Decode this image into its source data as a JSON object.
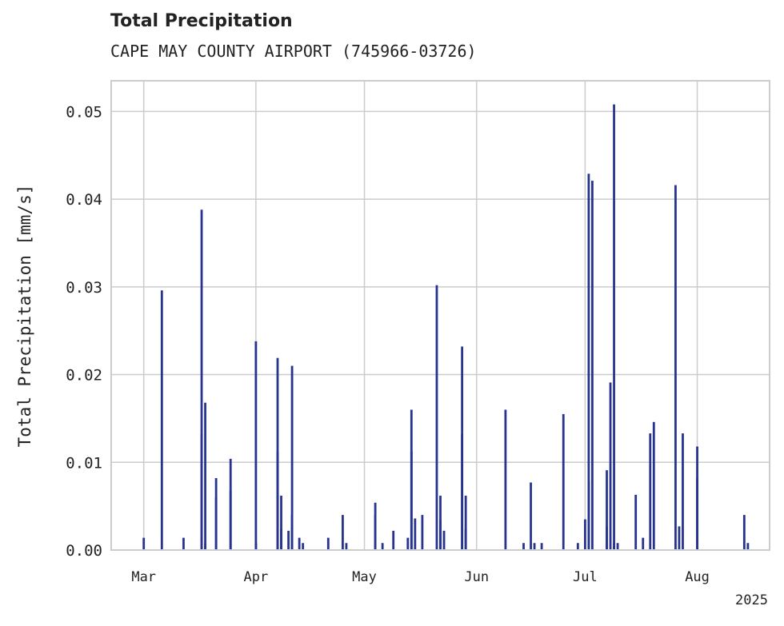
{
  "chart_data": {
    "type": "bar",
    "title": "Total Precipitation",
    "subtitle": "CAPE MAY COUNTY AIRPORT (745966-03726)",
    "xlabel": "",
    "ylabel": "Total Precipitation [mm/s]",
    "year_label": "2025",
    "ylim": [
      0.0,
      0.0535
    ],
    "yticks": [
      0.0,
      0.01,
      0.02,
      0.03,
      0.04,
      0.05
    ],
    "ytick_labels": [
      "0.00",
      "0.01",
      "0.02",
      "0.03",
      "0.04",
      "0.05"
    ],
    "xlim": [
      "2025-02-20",
      "2025-08-21"
    ],
    "xticks": [
      "2025-03-01",
      "2025-04-01",
      "2025-05-01",
      "2025-06-01",
      "2025-07-01",
      "2025-08-01"
    ],
    "xtick_labels": [
      "Mar",
      "Apr",
      "May",
      "Jun",
      "Jul",
      "Aug"
    ],
    "grid": true,
    "bar_color": "#26348f",
    "series": [
      {
        "x": [
          "2025-03-01",
          "2025-03-06",
          "2025-03-12",
          "2025-03-17",
          "2025-03-17",
          "2025-03-18",
          "2025-03-18",
          "2025-03-21",
          "2025-03-21",
          "2025-03-25",
          "2025-03-25",
          "2025-04-01",
          "2025-04-01",
          "2025-04-07",
          "2025-04-07",
          "2025-04-08",
          "2025-04-08",
          "2025-04-10",
          "2025-04-11",
          "2025-04-11",
          "2025-04-11",
          "2025-04-13",
          "2025-04-14",
          "2025-04-21",
          "2025-04-25",
          "2025-04-26",
          "2025-05-04",
          "2025-05-04",
          "2025-05-06",
          "2025-05-09",
          "2025-05-13",
          "2025-05-14",
          "2025-05-14",
          "2025-05-15",
          "2025-05-17",
          "2025-05-21",
          "2025-05-22",
          "2025-05-22",
          "2025-05-23",
          "2025-05-28",
          "2025-05-28",
          "2025-05-29",
          "2025-05-29",
          "2025-06-09",
          "2025-06-14",
          "2025-06-16",
          "2025-06-17",
          "2025-06-19",
          "2025-06-25",
          "2025-06-29",
          "2025-07-01",
          "2025-07-02",
          "2025-07-02",
          "2025-07-03",
          "2025-07-07",
          "2025-07-07",
          "2025-07-08",
          "2025-07-09",
          "2025-07-09",
          "2025-07-10",
          "2025-07-15",
          "2025-07-17",
          "2025-07-19",
          "2025-07-20",
          "2025-07-26",
          "2025-07-27",
          "2025-07-28",
          "2025-08-01",
          "2025-08-01",
          "2025-08-14",
          "2025-08-15"
        ],
        "values": [
          0.0014,
          0.0296,
          0.0014,
          0.0388,
          0.0132,
          0.0008,
          0.0168,
          0.0082,
          0.006,
          0.0104,
          0.0068,
          0.0238,
          0.0008,
          0.0219,
          0.0112,
          0.0062,
          0.0024,
          0.0022,
          0.004,
          0.021,
          0.0026,
          0.0014,
          0.0008,
          0.0014,
          0.004,
          0.0008,
          0.0054,
          0.004,
          0.0008,
          0.0022,
          0.0014,
          0.016,
          0.0112,
          0.0036,
          0.004,
          0.0302,
          0.0034,
          0.0062,
          0.0022,
          0.0132,
          0.0232,
          0.0062,
          0.0024,
          0.016,
          0.0008,
          0.0077,
          0.0008,
          0.0008,
          0.0155,
          0.0008,
          0.0035,
          0.0078,
          0.0429,
          0.0421,
          0.0027,
          0.0091,
          0.0191,
          0.0508,
          0.0008,
          0.0008,
          0.0063,
          0.0014,
          0.0133,
          0.0146,
          0.0416,
          0.0027,
          0.0133,
          0.0118,
          0.0082,
          0.004,
          0.0008
        ]
      }
    ]
  }
}
